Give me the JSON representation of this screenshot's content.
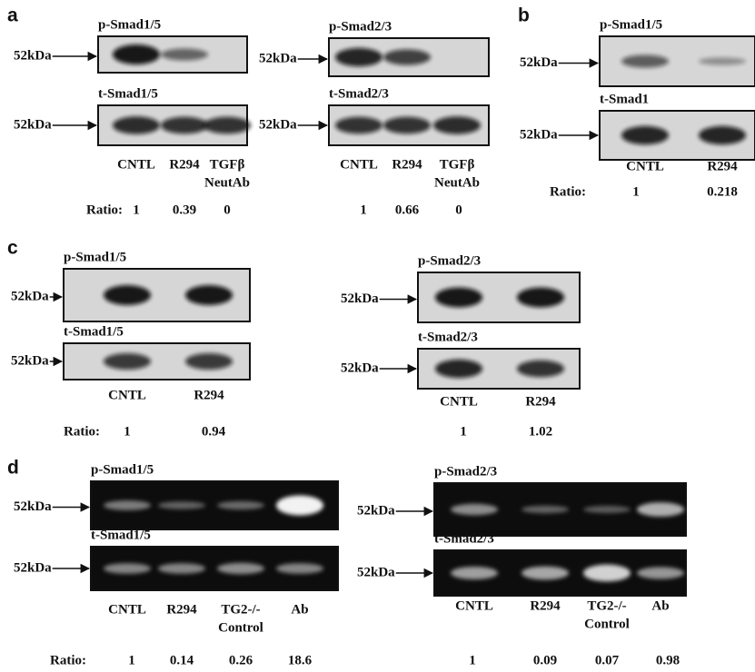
{
  "panels": [
    {
      "label": "a",
      "groups": [
        {
          "blots": [
            {
              "title": "p-Smad1/5",
              "marker": "52kDa"
            },
            {
              "title": "t-Smad1/5",
              "marker": "52kDa"
            }
          ],
          "lanes": [
            [
              "CNTL"
            ],
            [
              "R294"
            ],
            [
              "TGFβ",
              "NeutAb"
            ]
          ],
          "ratio_label": "Ratio:",
          "ratios": [
            "1",
            "0.39",
            "0"
          ]
        },
        {
          "blots": [
            {
              "title": "p-Smad2/3",
              "marker": "52kDa"
            },
            {
              "title": "t-Smad2/3",
              "marker": "52kDa"
            }
          ],
          "lanes": [
            [
              "CNTL"
            ],
            [
              "R294"
            ],
            [
              "TGFβ",
              "NeutAb"
            ]
          ],
          "ratios": [
            "1",
            "0.66",
            "0"
          ]
        }
      ]
    },
    {
      "label": "b",
      "groups": [
        {
          "blots": [
            {
              "title": "p-Smad1/5",
              "marker": "52kDa"
            },
            {
              "title": "t-Smad1",
              "marker": "52kDa"
            }
          ],
          "lanes": [
            [
              "CNTL"
            ],
            [
              "R294"
            ]
          ],
          "ratio_label": "Ratio:",
          "ratios": [
            "1",
            "0.218"
          ]
        }
      ]
    },
    {
      "label": "c",
      "groups": [
        {
          "blots": [
            {
              "title": "p-Smad1/5",
              "marker": "52kDa"
            },
            {
              "title": "t-Smad1/5",
              "marker": "52kDa"
            }
          ],
          "lanes": [
            [
              "CNTL"
            ],
            [
              "R294"
            ]
          ],
          "ratio_label": "Ratio:",
          "ratios": [
            "1",
            "0.94"
          ]
        },
        {
          "blots": [
            {
              "title": "p-Smad2/3",
              "marker": "52kDa"
            },
            {
              "title": "t-Smad2/3",
              "marker": "52kDa"
            }
          ],
          "lanes": [
            [
              "CNTL"
            ],
            [
              "R294"
            ]
          ],
          "ratios": [
            "1",
            "1.02"
          ]
        }
      ]
    },
    {
      "label": "d",
      "groups": [
        {
          "blots": [
            {
              "title": "p-Smad1/5",
              "marker": "52kDa"
            },
            {
              "title": "t-Smad1/5",
              "marker": "52kDa"
            }
          ],
          "lanes": [
            [
              "CNTL"
            ],
            [
              "R294"
            ],
            [
              "TG2-/-",
              "Control"
            ],
            [
              "Ab"
            ]
          ],
          "ratio_label": "Ratio:",
          "ratios": [
            "1",
            "0.14",
            "0.26",
            "18.6"
          ]
        },
        {
          "blots": [
            {
              "title": "p-Smad2/3",
              "marker": "52kDa"
            },
            {
              "title": "t-Smad2/3",
              "marker": "52kDa"
            }
          ],
          "lanes": [
            [
              "CNTL"
            ],
            [
              "R294"
            ],
            [
              "TG2-/-",
              "Control"
            ],
            [
              "Ab"
            ]
          ],
          "ratios": [
            "1",
            "0.09",
            "0.07",
            "0.98"
          ]
        }
      ]
    }
  ]
}
